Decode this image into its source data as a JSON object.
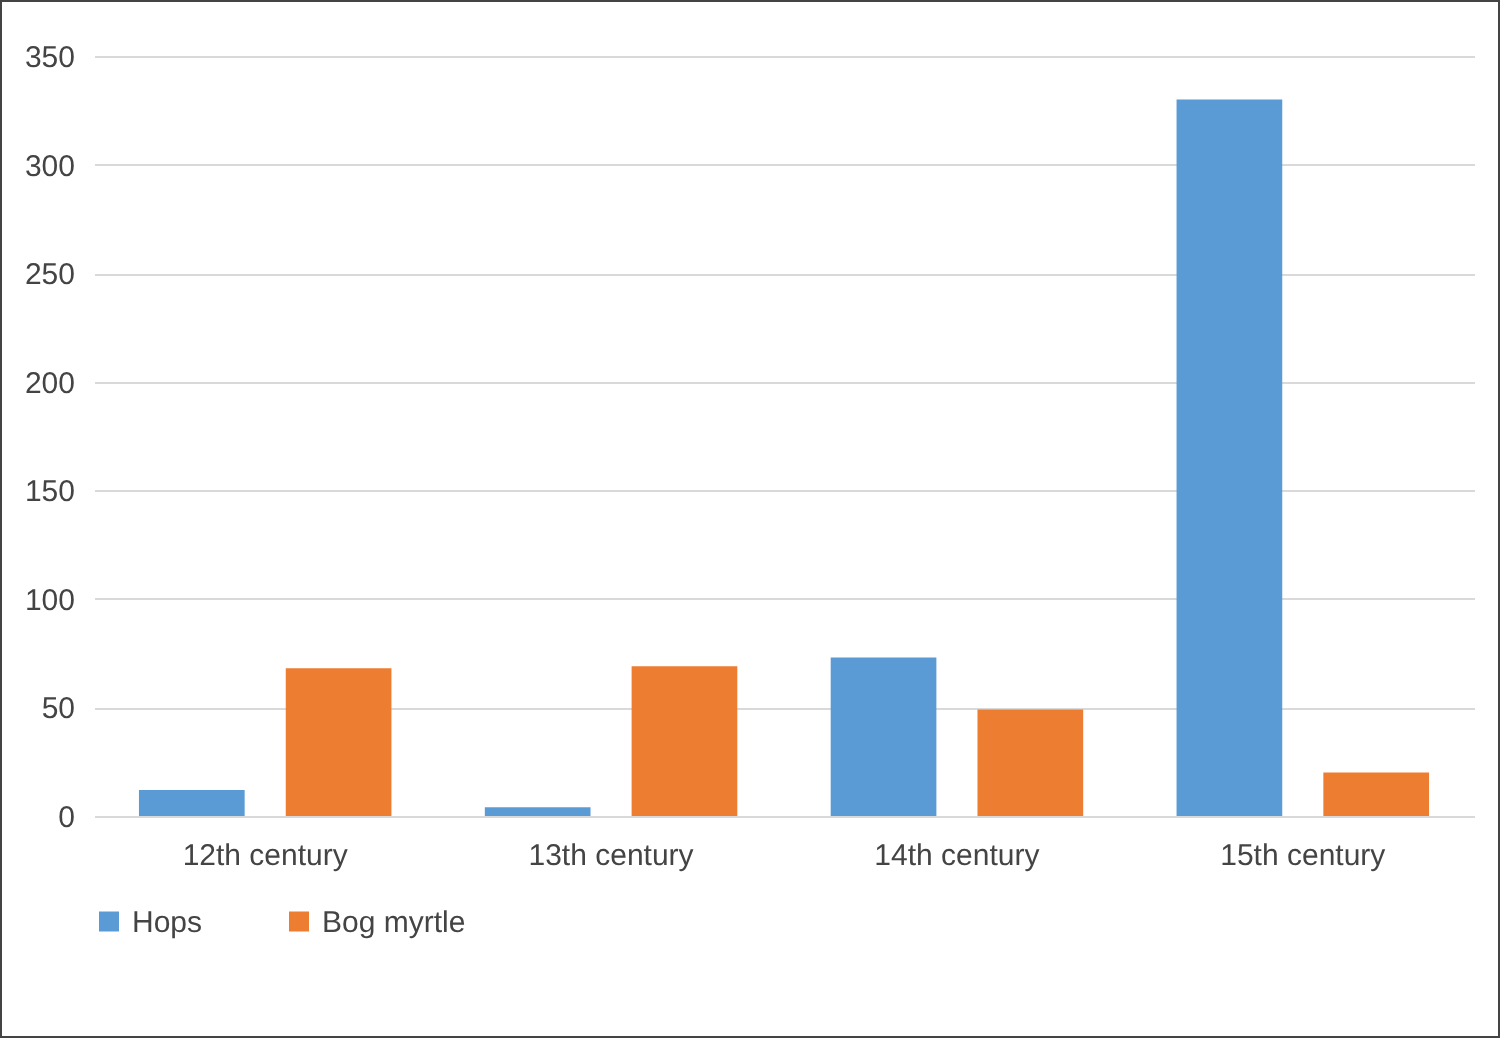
{
  "chart_data": {
    "type": "bar",
    "categories": [
      "12th century",
      "13th century",
      "14th century",
      "15th century"
    ],
    "series": [
      {
        "name": "Hops",
        "color": "#5b9bd5",
        "values": [
          12,
          4,
          73,
          330
        ]
      },
      {
        "name": "Bog myrtle",
        "color": "#ed7d31",
        "values": [
          68,
          69,
          49,
          20
        ]
      }
    ],
    "ylim": [
      0,
      350
    ],
    "yticks": [
      0,
      50,
      100,
      150,
      200,
      250,
      300,
      350
    ],
    "grid": "y",
    "legend": "bottom"
  }
}
